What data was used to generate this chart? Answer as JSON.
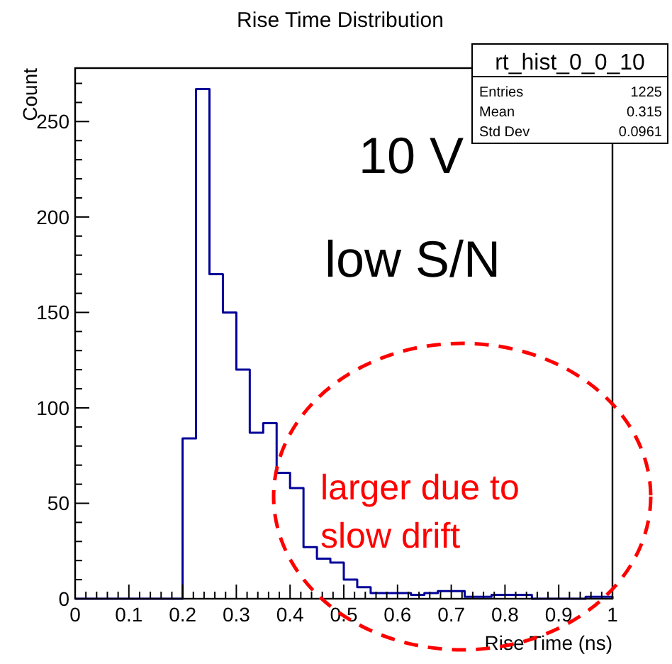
{
  "chart_data": {
    "type": "histogram",
    "title": "Rise Time Distribution",
    "xlabel": "Rise Time (ns)",
    "ylabel": "Count",
    "bins": [
      0,
      0.025,
      0.05,
      0.075,
      0.1,
      0.125,
      0.15,
      0.175,
      0.2,
      0.225,
      0.25,
      0.275,
      0.3,
      0.325,
      0.35,
      0.375,
      0.4,
      0.425,
      0.45,
      0.475,
      0.5,
      0.525,
      0.55,
      0.575,
      0.6,
      0.625,
      0.65,
      0.675,
      0.7,
      0.725,
      0.75,
      0.775,
      0.8,
      0.825,
      0.85,
      0.875,
      0.9,
      0.925,
      0.95,
      0.975,
      1
    ],
    "values": [
      0,
      0,
      0,
      0,
      0,
      0,
      0,
      0,
      84,
      267,
      170,
      150,
      120,
      87,
      92,
      66,
      58,
      27,
      21,
      19,
      10,
      6,
      3,
      3,
      3,
      2,
      3,
      4,
      4,
      1,
      1,
      2,
      2,
      2,
      0,
      0,
      0,
      0,
      1,
      1
    ],
    "color": "#000099",
    "xlim": [
      0,
      1
    ],
    "ylim": [
      0,
      278
    ],
    "xticks": [
      0,
      {
        "value": 0.02,
        "label": null
      },
      {
        "value": 0.04,
        "label": null
      },
      {
        "value": 0.06,
        "label": null
      },
      {
        "value": 0.08,
        "label": null
      },
      0.1,
      {
        "value": 0.12,
        "label": null
      },
      {
        "value": 0.14,
        "label": null
      },
      {
        "value": 0.16,
        "label": null
      },
      {
        "value": 0.18,
        "label": null
      },
      0.2,
      {
        "value": 0.22,
        "label": null
      },
      {
        "value": 0.24,
        "label": null
      },
      {
        "value": 0.26,
        "label": null
      },
      {
        "value": 0.28,
        "label": null
      },
      0.3,
      {
        "value": 0.32,
        "label": null
      },
      {
        "value": 0.34,
        "label": null
      },
      {
        "value": 0.36,
        "label": null
      },
      {
        "value": 0.38,
        "label": null
      },
      0.4,
      {
        "value": 0.42,
        "label": null
      },
      {
        "value": 0.44,
        "label": null
      },
      {
        "value": 0.46,
        "label": null
      },
      {
        "value": 0.48,
        "label": null
      },
      0.5,
      {
        "value": 0.52,
        "label": null
      },
      {
        "value": 0.54,
        "label": null
      },
      {
        "value": 0.56,
        "label": null
      },
      {
        "value": 0.58,
        "label": null
      },
      0.6,
      {
        "value": 0.62,
        "label": null
      },
      {
        "value": 0.64,
        "label": null
      },
      {
        "value": 0.66,
        "label": null
      },
      {
        "value": 0.68,
        "label": null
      },
      0.7,
      {
        "value": 0.72,
        "label": null
      },
      {
        "value": 0.74,
        "label": null
      },
      {
        "value": 0.76,
        "label": null
      },
      {
        "value": 0.78,
        "label": null
      },
      0.8,
      {
        "value": 0.82,
        "label": null
      },
      {
        "value": 0.84,
        "label": null
      },
      {
        "value": 0.86,
        "label": null
      },
      {
        "value": 0.88,
        "label": null
      },
      0.9,
      {
        "value": 0.92,
        "label": null
      },
      {
        "value": 0.94,
        "label": null
      },
      {
        "value": 0.96,
        "label": null
      },
      {
        "value": 0.98,
        "label": null
      },
      1
    ],
    "yticks": [
      0,
      {
        "value": 10,
        "label": null
      },
      {
        "value": 20,
        "label": null
      },
      {
        "value": 30,
        "label": null
      },
      {
        "value": 40,
        "label": null
      },
      50,
      {
        "value": 60,
        "label": null
      },
      {
        "value": 70,
        "label": null
      },
      {
        "value": 80,
        "label": null
      },
      {
        "value": 90,
        "label": null
      },
      100,
      {
        "value": 110,
        "label": null
      },
      {
        "value": 120,
        "label": null
      },
      {
        "value": 130,
        "label": null
      },
      {
        "value": 140,
        "label": null
      },
      150,
      {
        "value": 160,
        "label": null
      },
      {
        "value": 170,
        "label": null
      },
      {
        "value": 180,
        "label": null
      },
      {
        "value": 190,
        "label": null
      },
      200,
      {
        "value": 210,
        "label": null
      },
      {
        "value": 220,
        "label": null
      },
      {
        "value": 230,
        "label": null
      },
      {
        "value": 240,
        "label": null
      },
      250,
      {
        "value": 260,
        "label": null
      },
      {
        "value": 270,
        "label": null
      }
    ],
    "grid": false,
    "annotations": [
      "10 V",
      "low S/N",
      "larger due to slow drift",
      "rt_hist_0_0_10",
      "Entries 1225",
      "Mean 0.315",
      "Std Dev 0.0961"
    ]
  }
}
